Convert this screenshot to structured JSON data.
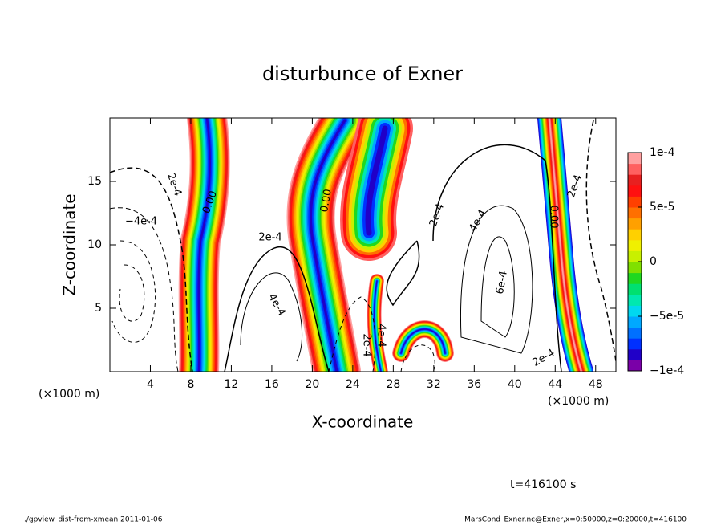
{
  "chart_data": {
    "type": "contour",
    "title": "disturbunce of Exner",
    "x_label": "X-coordinate",
    "y_label": "Z-coordinate",
    "x_unit_left": "(×1000 m)",
    "x_unit_right": "(×1000 m)",
    "xlim": [
      0,
      50
    ],
    "ylim": [
      0,
      20
    ],
    "xticks": [
      4,
      8,
      12,
      16,
      20,
      24,
      28,
      32,
      36,
      40,
      44,
      48
    ],
    "yticks": [
      5,
      10,
      15
    ],
    "colorbar": {
      "clim": [
        -0.0001,
        0.0001
      ],
      "ticks": [
        {
          "value": -0.0001,
          "label": "−1e-4"
        },
        {
          "value": -5e-05,
          "label": "−5e-5"
        },
        0,
        {
          "value": 5e-05,
          "label": "5e-5"
        },
        {
          "value": 0.0001,
          "label": "1e-4"
        }
      ],
      "colors": [
        "#7a00a8",
        "#2000c8",
        "#0030ff",
        "#0070ff",
        "#00a8ff",
        "#00d8f0",
        "#00e8b0",
        "#00e070",
        "#20d820",
        "#80e000",
        "#c8f000",
        "#f0f000",
        "#ffd000",
        "#ffa000",
        "#ff7000",
        "#ff4000",
        "#ff1010",
        "#e82020",
        "#ff6060",
        "#ffa0a0"
      ]
    },
    "contour_labels": [
      "2e-4",
      "−4e-4",
      "0.00",
      "2e-4",
      "4e-4",
      "0.00",
      "2e-4",
      "4e-4",
      "6e-4",
      "0.00",
      "2e-4",
      "2e-4",
      "4e-4",
      "2e-4"
    ],
    "time_label": "t=416100 s",
    "footer_left": "./gpview_dist-from-xmean  2011-01-06",
    "footer_right": "MarsCond_Exner.nc@Exner,x=0:50000,z=0:20000,t=416100"
  }
}
